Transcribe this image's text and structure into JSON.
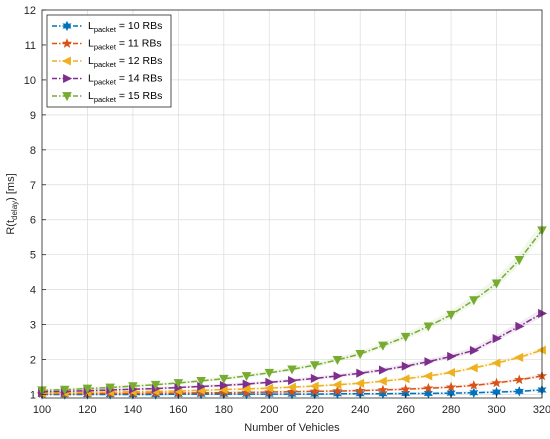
{
  "chart_data": {
    "type": "line",
    "xlabel": "Number of Vehicles",
    "ylabel_base": "R(t",
    "ylabel_sub": "delay",
    "ylabel_end": ") [ms]",
    "xlim": [
      100,
      320
    ],
    "ylim": [
      0.9,
      12
    ],
    "xticks": [
      100,
      120,
      140,
      160,
      180,
      200,
      220,
      240,
      260,
      280,
      300,
      320
    ],
    "yticks": [
      1,
      2,
      3,
      4,
      5,
      6,
      7,
      8,
      9,
      10,
      11,
      12
    ],
    "grid": true,
    "legend_position": "top-left",
    "x": [
      100,
      110,
      120,
      130,
      140,
      150,
      160,
      170,
      180,
      190,
      200,
      210,
      220,
      230,
      240,
      250,
      260,
      270,
      280,
      290,
      300,
      310,
      320
    ],
    "series": [
      {
        "name_base": "L",
        "name_sub": "packet",
        "name_end": " = 10 RBs",
        "color": "#0072BD",
        "marker": "star",
        "values": [
          1.0,
          1.0,
          1.0,
          1.0,
          1.0,
          1.0,
          1.01,
          1.01,
          1.01,
          1.01,
          1.01,
          1.01,
          1.01,
          1.02,
          1.02,
          1.02,
          1.03,
          1.03,
          1.04,
          1.05,
          1.07,
          1.09,
          1.13
        ]
      },
      {
        "name_base": "L",
        "name_sub": "packet",
        "name_end": " = 11 RBs",
        "color": "#D95319",
        "marker": "pentagram",
        "values": [
          1.02,
          1.02,
          1.03,
          1.03,
          1.03,
          1.04,
          1.04,
          1.05,
          1.05,
          1.06,
          1.07,
          1.08,
          1.09,
          1.1,
          1.11,
          1.13,
          1.15,
          1.18,
          1.21,
          1.26,
          1.33,
          1.42,
          1.53
        ]
      },
      {
        "name_base": "L",
        "name_sub": "packet",
        "name_end": " = 12 RBs",
        "color": "#EDB120",
        "marker": "triangle-left",
        "values": [
          1.04,
          1.05,
          1.06,
          1.07,
          1.08,
          1.09,
          1.1,
          1.12,
          1.14,
          1.16,
          1.18,
          1.21,
          1.24,
          1.28,
          1.32,
          1.38,
          1.45,
          1.53,
          1.63,
          1.76,
          1.9,
          2.06,
          2.27
        ]
      },
      {
        "name_base": "L",
        "name_sub": "packet",
        "name_end": " = 14 RBs",
        "color": "#7E2F8E",
        "marker": "triangle-right",
        "values": [
          1.08,
          1.09,
          1.11,
          1.13,
          1.15,
          1.17,
          1.2,
          1.23,
          1.26,
          1.3,
          1.35,
          1.4,
          1.46,
          1.53,
          1.61,
          1.7,
          1.81,
          1.94,
          2.09,
          2.26,
          2.6,
          2.95,
          3.32
        ]
      },
      {
        "name_base": "L",
        "name_sub": "packet",
        "name_end": " = 15 RBs",
        "color": "#77AC30",
        "marker": "triangle-down",
        "values": [
          1.12,
          1.14,
          1.17,
          1.2,
          1.24,
          1.28,
          1.33,
          1.39,
          1.45,
          1.53,
          1.62,
          1.72,
          1.84,
          1.99,
          2.16,
          2.4,
          2.65,
          2.95,
          3.28,
          3.7,
          4.18,
          4.85,
          5.7
        ]
      }
    ]
  }
}
